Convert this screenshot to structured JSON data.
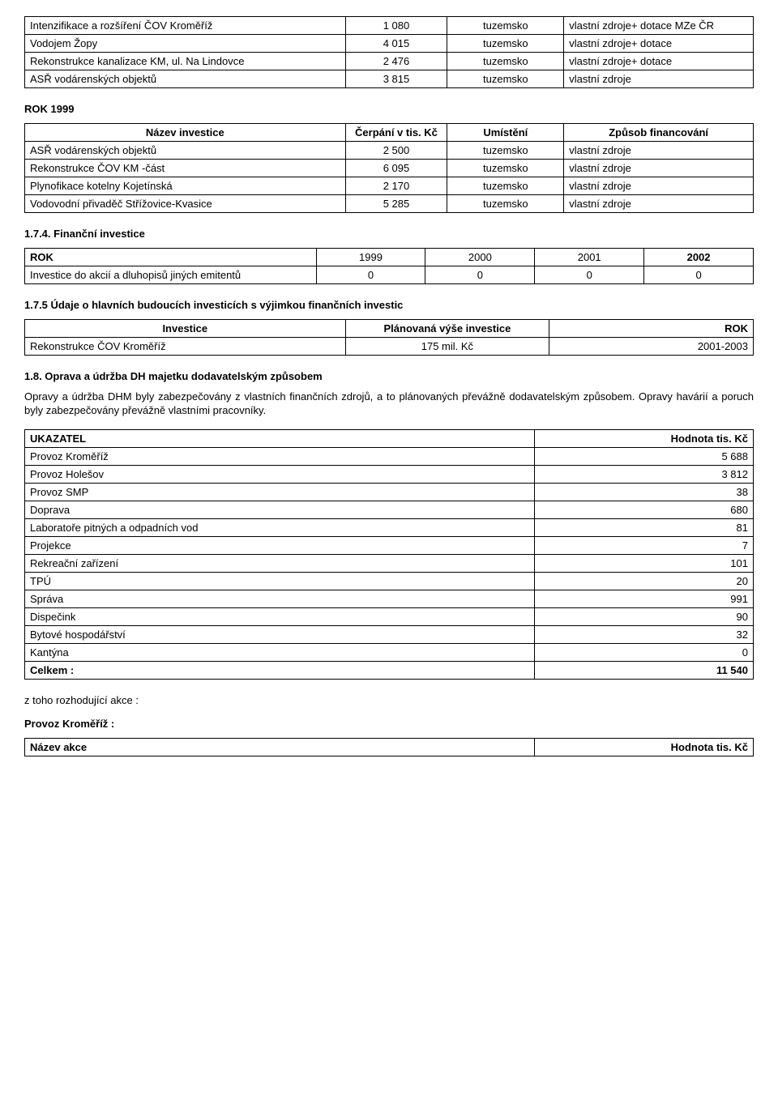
{
  "table_a": {
    "col_widths": [
      "44%",
      "14%",
      "16%",
      "26%"
    ],
    "rows": [
      [
        "Intenzifikace a rozšíření ČOV Kroměříž",
        "1 080",
        "tuzemsko",
        "vlastní zdroje+ dotace MZe ČR"
      ],
      [
        "Vodojem Žopy",
        "4 015",
        "tuzemsko",
        "vlastní zdroje+ dotace"
      ],
      [
        "Rekonstrukce kanalizace KM, ul. Na Lindovce",
        "2 476",
        "tuzemsko",
        "vlastní zdroje+ dotace"
      ],
      [
        "ASŘ vodárenských objektů",
        "3 815",
        "tuzemsko",
        "vlastní zdroje"
      ]
    ]
  },
  "rok1999_heading": "ROK 1999",
  "table_b": {
    "col_widths": [
      "44%",
      "14%",
      "16%",
      "26%"
    ],
    "header": [
      "Název investice",
      "Čerpání v tis. Kč",
      "Umístění",
      "Způsob financování"
    ],
    "rows": [
      [
        "ASŘ vodárenských objektů",
        "2 500",
        "tuzemsko",
        "vlastní zdroje"
      ],
      [
        "Rekonstrukce ČOV KM -část",
        "6 095",
        "tuzemsko",
        "vlastní zdroje"
      ],
      [
        "Plynofikace kotelny Kojetínská",
        "2 170",
        "tuzemsko",
        "vlastní zdroje"
      ],
      [
        "Vodovodní přivaděč Střížovice-Kvasice",
        "5 285",
        "tuzemsko",
        "vlastní zdroje"
      ]
    ]
  },
  "sec_174": "1.7.4. Finanční investice",
  "table_c": {
    "col_widths": [
      "40%",
      "15%",
      "15%",
      "15%",
      "15%"
    ],
    "header": [
      "ROK",
      "1999",
      "2000",
      "2001",
      "2002"
    ],
    "rows": [
      [
        "Investice do akcií a dluhopisů jiných emitentů",
        "0",
        "0",
        "0",
        "0"
      ]
    ]
  },
  "sec_175": "1.7.5 Údaje o hlavních budoucích investicích s výjimkou finančních investic",
  "table_d": {
    "col_widths": [
      "44%",
      "28%",
      "28%"
    ],
    "header": [
      "Investice",
      "Plánovaná výše investice",
      "ROK"
    ],
    "rows": [
      [
        "Rekonstrukce ČOV Kroměříž",
        "175 mil. Kč",
        "2001-2003"
      ]
    ]
  },
  "sec_18": "1.8. Oprava a údržba DH majetku dodavatelským způsobem",
  "para_18": "Opravy a údržba DHM byly zabezpečovány z vlastních finančních zdrojů, a to plánovaných převážně dodavatelským způsobem. Opravy havárií a poruch byly zabezpečovány převážně vlastními pracovníky.",
  "table_e": {
    "col_widths": [
      "70%",
      "30%"
    ],
    "header": [
      "UKAZATEL",
      "Hodnota tis. Kč"
    ],
    "rows": [
      [
        "Provoz Kroměříž",
        "5 688"
      ],
      [
        "Provoz Holešov",
        "3 812"
      ],
      [
        "Provoz SMP",
        "38"
      ],
      [
        "Doprava",
        "680"
      ],
      [
        "Laboratoře pitných a odpadních vod",
        "81"
      ],
      [
        "Projekce",
        "7"
      ],
      [
        "Rekreační zařízení",
        "101"
      ],
      [
        "TPÚ",
        "20"
      ],
      [
        "Správa",
        "991"
      ],
      [
        "Dispečink",
        "90"
      ],
      [
        "Bytové hospodářství",
        "32"
      ],
      [
        "Kantýna",
        "0"
      ]
    ],
    "total": [
      "Celkem :",
      "11 540"
    ]
  },
  "line_ztoho": "z toho rozhodující akce :",
  "line_provoz_km": "Provoz Kroměříž :",
  "table_f": {
    "col_widths": [
      "70%",
      "30%"
    ],
    "header": [
      "Název akce",
      "Hodnota tis. Kč"
    ]
  }
}
